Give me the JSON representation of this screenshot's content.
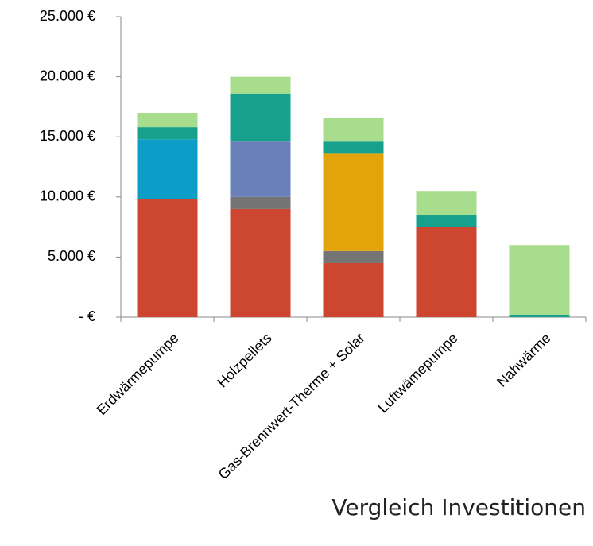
{
  "chart_data": {
    "type": "stacked_bar",
    "title": "Vergleich Investitionen",
    "categories": [
      "Erdwärmepumpe",
      "Holzpellets",
      "Gas-Brennwert-Therme + Solar",
      "Luftwämepumpe",
      "Nahwärme"
    ],
    "series": [
      {
        "color": "#cc4630",
        "values": [
          9800,
          9000,
          4500,
          7500,
          0
        ]
      },
      {
        "color": "#747474",
        "values": [
          0,
          1000,
          1000,
          0,
          0
        ]
      },
      {
        "color": "#0d9ec8",
        "values": [
          5000,
          0,
          0,
          0,
          0
        ]
      },
      {
        "color": "#6a80b8",
        "values": [
          0,
          4600,
          0,
          0,
          0
        ]
      },
      {
        "color": "#e2a40a",
        "values": [
          0,
          0,
          8100,
          0,
          0
        ]
      },
      {
        "color": "#17a08c",
        "values": [
          1000,
          4000,
          1000,
          1000,
          200
        ]
      },
      {
        "color": "#a7dd8c",
        "values": [
          1200,
          1400,
          2000,
          2000,
          5800
        ]
      }
    ],
    "ylim": [
      0,
      25000
    ],
    "yticks": [
      {
        "value": 0,
        "label": "-   €"
      },
      {
        "value": 5000,
        "label": "5.000 €"
      },
      {
        "value": 10000,
        "label": "10.000 €"
      },
      {
        "value": 15000,
        "label": "15.000 €"
      },
      {
        "value": 20000,
        "label": "20.000 €"
      },
      {
        "value": 25000,
        "label": "25.000 €"
      }
    ]
  }
}
